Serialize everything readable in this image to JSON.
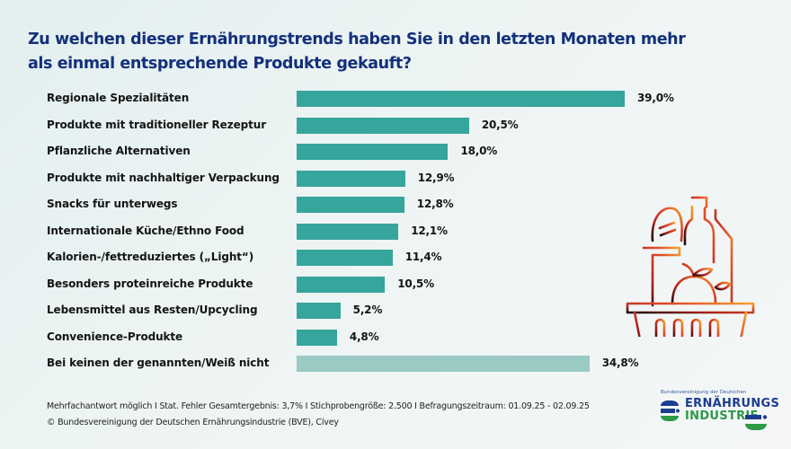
{
  "chart_data": {
    "type": "bar",
    "orientation": "horizontal",
    "title": "Zu welchen dieser Ernährungstrends haben Sie in den letzten Monaten mehr als einmal entsprechende Produkte gekauft?",
    "xlabel": "",
    "ylabel": "",
    "xlim": [
      0,
      40
    ],
    "grid": false,
    "unit": "%",
    "categories": [
      "Regionale Spezialitäten",
      "Produkte mit traditioneller Rezeptur",
      "Pflanzliche Alternativen",
      "Produkte mit nachhaltiger Verpackung",
      "Snacks für unterwegs",
      "Internationale Küche/Ethno Food",
      "Kalorien-/fettreduziertes („Light“)",
      "Besonders proteinreiche Produkte",
      "Lebensmittel aus Resten/Upcycling",
      "Convenience-Produkte",
      "Bei keinen der genannten/Weiß nicht"
    ],
    "values": [
      39.0,
      20.5,
      18.0,
      12.9,
      12.8,
      12.1,
      11.4,
      10.5,
      5.2,
      4.8,
      34.8
    ],
    "value_labels": [
      "39,0%",
      "20,5%",
      "18,0%",
      "12,9%",
      "12,8%",
      "12,1%",
      "11,4%",
      "10,5%",
      "5,2%",
      "4,8%",
      "34,8%"
    ],
    "highlight": [
      true,
      true,
      true,
      true,
      true,
      true,
      true,
      true,
      true,
      true,
      false
    ],
    "colors": {
      "primary": "#36a59c",
      "muted": "#9bc9c4"
    }
  },
  "footer": {
    "line1": "Mehrfachantwort möglich I Stat. Fehler Gesamtergebnis: 3,7% I Stichprobengröße: 2.500 I Befragungszeitraum: 01.09.25 - 02.09.25",
    "line2": "© Bundesvereinigung der Deutschen Ernährungsindustrie (BVE), Civey"
  },
  "logo": {
    "top": "Bundesvereinigung der Deutschen",
    "line1": "ERNÄHRUNGS",
    "line2": "INDUSTRIE",
    "colors": {
      "blue": "#1c3d8f",
      "green": "#2e9a48"
    }
  },
  "illustration": {
    "icon": "grocery-basket-icon"
  }
}
